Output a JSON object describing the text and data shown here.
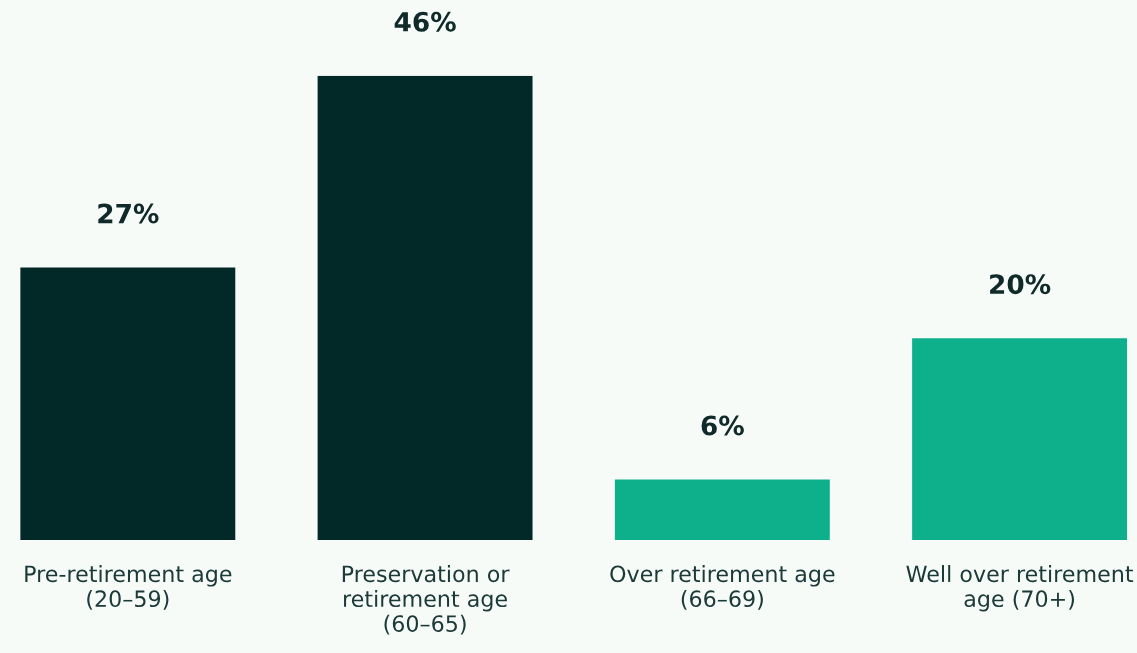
{
  "chart_data": {
    "type": "bar",
    "categories": [
      "Pre-retirement age\n(20–59)",
      "Preservation or\nretirement age\n(60–65)",
      "Over retirement age\n(66–69)",
      "Well over retirement\nage (70+)"
    ],
    "values": [
      27,
      46,
      6,
      20
    ],
    "colors": [
      "#022827",
      "#022827",
      "#0db08b",
      "#0db08b"
    ],
    "value_labels": [
      "27%",
      "46%",
      "6%",
      "20%"
    ],
    "grid": false,
    "legend": false
  }
}
